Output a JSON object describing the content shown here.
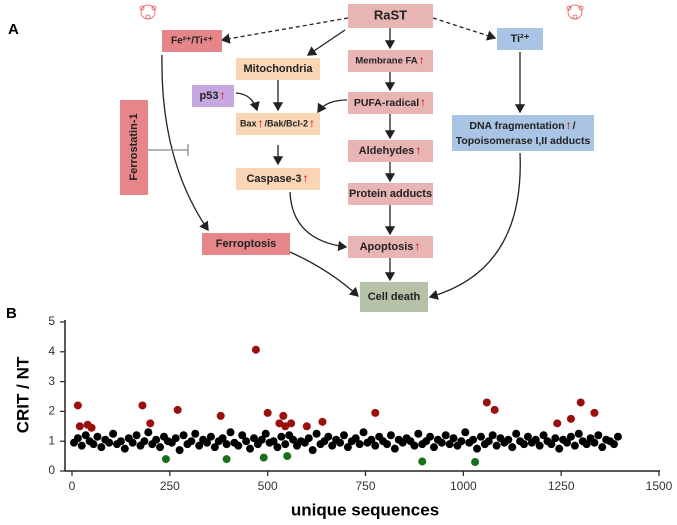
{
  "panel_labels": [
    "A",
    "B"
  ],
  "diagram": {
    "nodes": [
      {
        "label": "RaST"
      },
      {
        "label": "Fe²⁺/Ti⁴⁺"
      },
      {
        "label": "Ti²⁺"
      },
      {
        "label": "Mitochondria"
      },
      {
        "label": "Membrane FA"
      },
      {
        "label": "p53"
      },
      {
        "label": "PUFA-radical"
      },
      {
        "label_parts": [
          "Bax",
          "/Bak/Bcl-2"
        ]
      },
      {
        "label": "Ferrostatin-1"
      },
      {
        "label_lines": [
          "DNA fragmentation",
          "/",
          "Topoisomerase  I,II adducts"
        ]
      },
      {
        "label": "Aldehydes"
      },
      {
        "label": "Caspase-3"
      },
      {
        "label": "Protein adducts"
      },
      {
        "label": "Ferroptosis"
      },
      {
        "label": "Apoptosis"
      },
      {
        "label": "Cell death"
      }
    ]
  },
  "chart_data": {
    "type": "scatter",
    "ylabel": "CRIT / NT",
    "xlabel": "unique sequences",
    "xlim": [
      0,
      1500
    ],
    "xticks": [
      0,
      250,
      500,
      750,
      1000,
      1250,
      1500
    ],
    "ylim": [
      0,
      5
    ],
    "yticks": [
      0,
      1,
      2,
      3,
      4,
      5
    ],
    "series": [
      {
        "color": "#000000",
        "x": [
          5,
          15,
          25,
          35,
          45,
          55,
          65,
          75,
          85,
          95,
          105,
          115,
          125,
          135,
          145,
          155,
          165,
          175,
          185,
          195,
          205,
          215,
          225,
          235,
          245,
          255,
          265,
          275,
          285,
          295,
          305,
          315,
          325,
          335,
          345,
          355,
          365,
          375,
          385,
          395,
          405,
          415,
          425,
          435,
          445,
          455,
          465,
          475,
          485,
          495,
          505,
          515,
          525,
          535,
          545,
          555,
          565,
          575,
          585,
          595,
          605,
          615,
          625,
          635,
          645,
          655,
          665,
          675,
          685,
          695,
          705,
          715,
          725,
          735,
          745,
          755,
          765,
          775,
          785,
          795,
          805,
          815,
          825,
          835,
          845,
          855,
          865,
          875,
          885,
          895,
          905,
          915,
          925,
          935,
          945,
          955,
          965,
          975,
          985,
          995,
          1005,
          1015,
          1025,
          1035,
          1045,
          1055,
          1065,
          1075,
          1085,
          1095,
          1105,
          1115,
          1125,
          1135,
          1145,
          1155,
          1165,
          1175,
          1185,
          1195,
          1205,
          1215,
          1225,
          1235,
          1245,
          1255,
          1265,
          1275,
          1285,
          1295,
          1305,
          1315,
          1325,
          1335,
          1345,
          1355,
          1365,
          1375,
          1385,
          1395
        ],
        "values": [
          0.95,
          1.1,
          0.85,
          1.2,
          1.0,
          0.9,
          1.15,
          0.8,
          1.05,
          0.95,
          1.25,
          0.9,
          1.0,
          0.75,
          1.1,
          0.95,
          1.2,
          0.85,
          1.0,
          1.3,
          0.9,
          1.05,
          0.8,
          1.15,
          1.0,
          0.95,
          1.1,
          0.7,
          1.2,
          0.9,
          1.0,
          1.25,
          0.85,
          1.05,
          0.95,
          1.15,
          0.8,
          1.0,
          1.1,
          0.9,
          1.3,
          0.95,
          0.85,
          1.2,
          1.0,
          0.75,
          1.1,
          0.9,
          1.05,
          1.25,
          0.95,
          1.0,
          0.8,
          1.15,
          0.9,
          1.2,
          1.05,
          0.85,
          1.0,
          0.95,
          1.1,
          0.7,
          1.25,
          0.9,
          1.0,
          1.15,
          0.85,
          1.05,
          0.95,
          1.2,
          0.8,
          1.0,
          1.1,
          0.9,
          1.3,
          0.95,
          1.05,
          0.85,
          1.15,
          1.0,
          0.9,
          1.2,
          0.75,
          1.05,
          0.95,
          1.1,
          1.0,
          0.85,
          1.25,
          0.9,
          1.0,
          1.15,
          0.8,
          1.05,
          0.95,
          1.2,
          0.9,
          1.1,
          0.85,
          1.0,
          1.3,
          0.95,
          1.05,
          0.75,
          1.15,
          0.9,
          1.0,
          1.2,
          0.85,
          1.1,
          0.95,
          1.05,
          0.8,
          1.25,
          1.0,
          0.9,
          1.15,
          0.95,
          1.05,
          0.85,
          1.2,
          1.0,
          0.9,
          1.1,
          0.75,
          1.05,
          0.95,
          1.15,
          0.85,
          1.25,
          1.0,
          0.9,
          1.1,
          0.95,
          1.2,
          0.8,
          1.05,
          1.0,
          0.9,
          1.15
        ]
      },
      {
        "color": "#9b0e0e",
        "x": [
          15,
          20,
          40,
          50,
          180,
          200,
          270,
          380,
          470,
          500,
          530,
          540,
          545,
          560,
          600,
          640,
          775,
          1060,
          1080,
          1240,
          1275,
          1300,
          1335
        ],
        "values": [
          2.2,
          1.5,
          1.55,
          1.45,
          2.2,
          1.6,
          2.05,
          1.85,
          4.07,
          1.95,
          1.6,
          1.85,
          1.5,
          1.6,
          1.5,
          1.65,
          1.95,
          2.3,
          2.05,
          1.6,
          1.75,
          2.3,
          1.95
        ]
      },
      {
        "color": "#17701a",
        "x": [
          240,
          395,
          490,
          550,
          895,
          1030
        ],
        "values": [
          0.4,
          0.4,
          0.45,
          0.5,
          0.32,
          0.3
        ]
      }
    ]
  }
}
